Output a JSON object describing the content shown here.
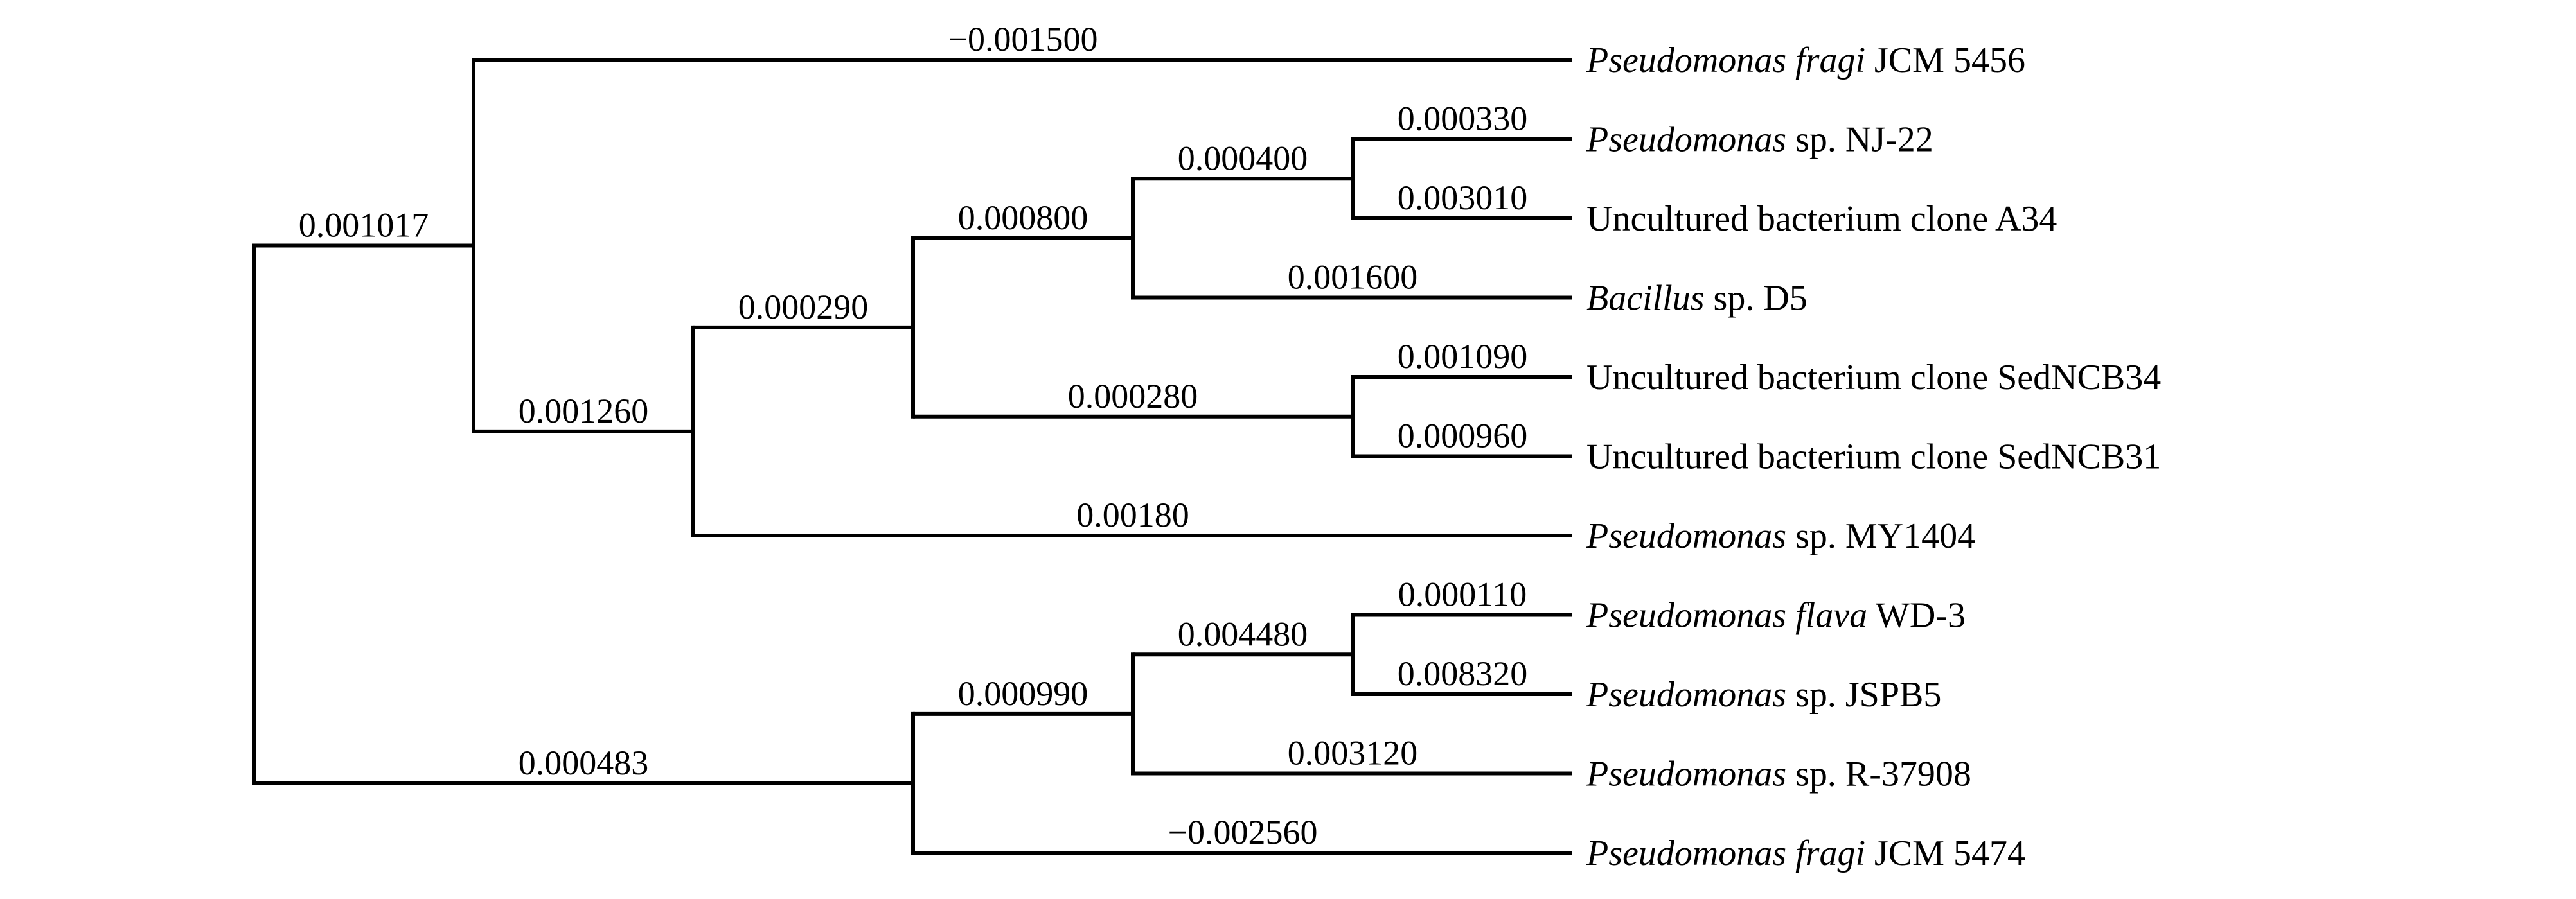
{
  "figure": {
    "type": "phylogenetic-tree",
    "background_color": "#ffffff",
    "line_color": "#000000",
    "text_color": "#000000"
  },
  "tree": {
    "children": [
      {
        "branch_length_label": "0.001017",
        "children": [
          {
            "branch_length_label": "−0.001500",
            "name": [
              {
                "text": "Pseudomonas fragi",
                "italic": true
              },
              {
                "text": " JCM 5456",
                "italic": false
              }
            ]
          },
          {
            "branch_length_label": "0.001260",
            "children": [
              {
                "branch_length_label": "0.000290",
                "children": [
                  {
                    "branch_length_label": "0.000800",
                    "children": [
                      {
                        "branch_length_label": "0.000400",
                        "children": [
                          {
                            "branch_length_label": "0.000330",
                            "name": [
                              {
                                "text": "Pseudomonas",
                                "italic": true
                              },
                              {
                                "text": " sp. NJ-22",
                                "italic": false
                              }
                            ]
                          },
                          {
                            "branch_length_label": "0.003010",
                            "name": [
                              {
                                "text": "Uncultured bacterium clone A34",
                                "italic": false
                              }
                            ]
                          }
                        ]
                      },
                      {
                        "branch_length_label": "0.001600",
                        "name": [
                          {
                            "text": "Bacillus",
                            "italic": true
                          },
                          {
                            "text": " sp. D5",
                            "italic": false
                          }
                        ]
                      }
                    ]
                  },
                  {
                    "branch_length_label": "0.000280",
                    "children": [
                      {
                        "branch_length_label": "0.001090",
                        "name": [
                          {
                            "text": "Uncultured bacterium clone SedNCB34",
                            "italic": false
                          }
                        ]
                      },
                      {
                        "branch_length_label": "0.000960",
                        "name": [
                          {
                            "text": "Uncultured bacterium clone SedNCB31",
                            "italic": false
                          }
                        ]
                      }
                    ]
                  }
                ]
              },
              {
                "branch_length_label": "0.00180",
                "name": [
                  {
                    "text": "Pseudomonas",
                    "italic": true
                  },
                  {
                    "text": " sp. MY1404",
                    "italic": false
                  }
                ]
              }
            ]
          }
        ]
      },
      {
        "branch_length_label": "0.000483",
        "children": [
          {
            "branch_length_label": "0.000990",
            "children": [
              {
                "branch_length_label": "0.004480",
                "children": [
                  {
                    "branch_length_label": "0.000110",
                    "name": [
                      {
                        "text": "Pseudomonas flava",
                        "italic": true
                      },
                      {
                        "text": " WD-3",
                        "italic": false
                      }
                    ]
                  },
                  {
                    "branch_length_label": "0.008320",
                    "name": [
                      {
                        "text": "Pseudomonas",
                        "italic": true
                      },
                      {
                        "text": " sp. JSPB5",
                        "italic": false
                      }
                    ]
                  }
                ]
              },
              {
                "branch_length_label": "0.003120",
                "name": [
                  {
                    "text": "Pseudomonas",
                    "italic": true
                  },
                  {
                    "text": " sp. R-37908",
                    "italic": false
                  }
                ]
              }
            ]
          },
          {
            "branch_length_label": "−0.002560",
            "name": [
              {
                "text": "Pseudomonas fragi",
                "italic": true
              },
              {
                "text": " JCM 5474",
                "italic": false
              }
            ]
          }
        ]
      }
    ]
  }
}
